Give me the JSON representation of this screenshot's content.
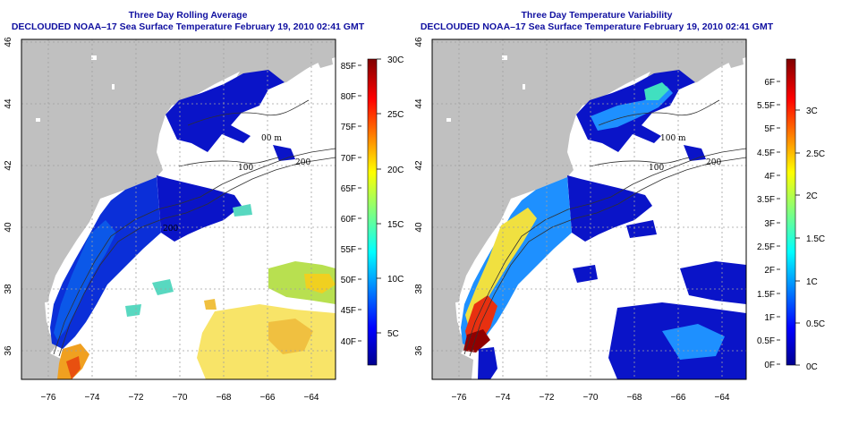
{
  "panels": [
    {
      "title_line1": "Three Day Rolling Average",
      "title_line2": "DECLOUDED NOAA–17 Sea Surface Temperature February 19, 2010 02:41 GMT"
    },
    {
      "title_line1": "Three Day Temperature Variability",
      "title_line2": "DECLOUDED NOAA–17 Sea Surface Temperature February 19, 2010 02:41 GMT"
    }
  ],
  "map_axes": {
    "longitude_ticks": [
      "−76",
      "−74",
      "−72",
      "−70",
      "−68",
      "−66",
      "−64"
    ],
    "latitude_ticks": [
      "46",
      "44",
      "42",
      "40",
      "38",
      "36"
    ]
  },
  "contour_labels": [
    "00 m",
    "100",
    "200",
    "200",
    "100 m"
  ],
  "colorbar_sst": {
    "fahrenheit_labels": [
      "85F",
      "80F",
      "75F",
      "70F",
      "65F",
      "60F",
      "55F",
      "50F",
      "45F",
      "40F"
    ],
    "celsius_labels": [
      "30C",
      "25C",
      "20C",
      "15C",
      "10C",
      "5C"
    ]
  },
  "colorbar_variability": {
    "fahrenheit_labels": [
      "6F",
      "5.5F",
      "5F",
      "4.5F",
      "4F",
      "3.5F",
      "3F",
      "2.5F",
      "2F",
      "1.5F",
      "1F",
      "0.5F",
      "0F"
    ],
    "celsius_labels": [
      "3C",
      "2.5C",
      "2C",
      "1.5C",
      "1C",
      "0.5C",
      "0C"
    ]
  },
  "colors": {
    "title": "#1010a0",
    "land": "#c0c0c0",
    "ocean_nodata": "#ffffff",
    "jet_low": "#00008f",
    "jet_high": "#800000"
  }
}
